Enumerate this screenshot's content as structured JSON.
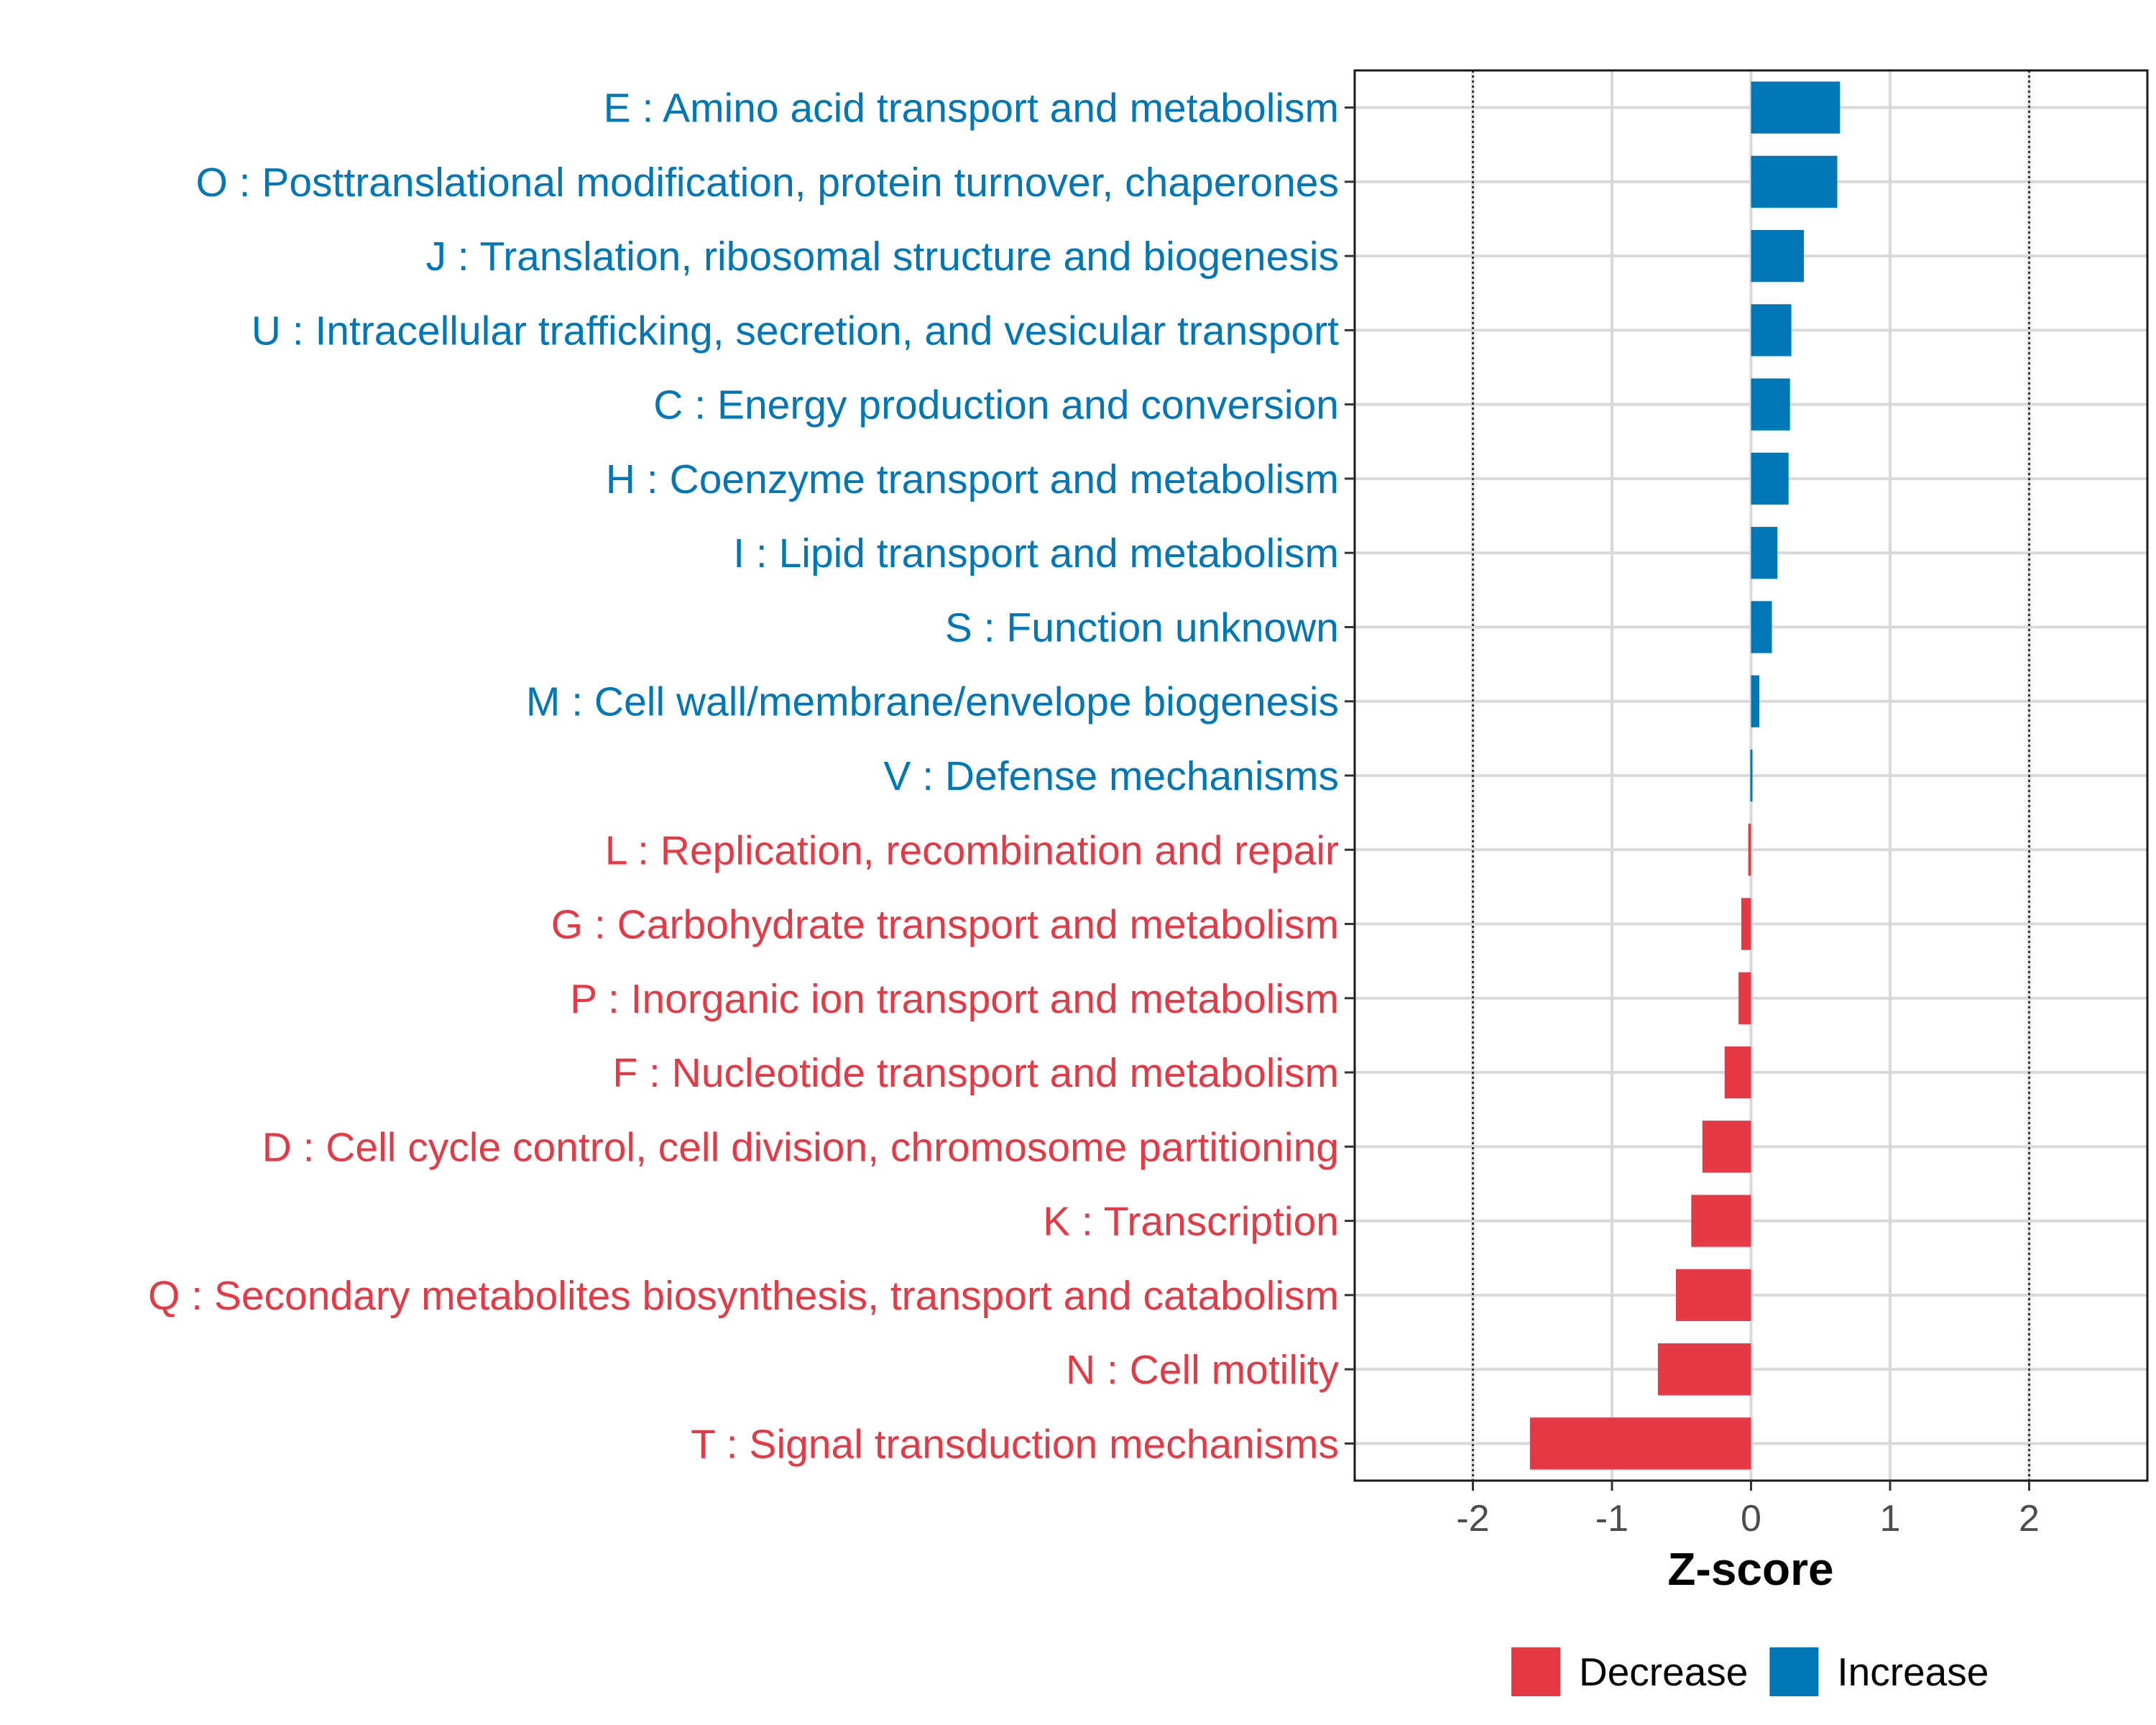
{
  "chart_data": {
    "type": "bar",
    "orientation": "horizontal",
    "xlabel": "Z-score",
    "xlim": [
      -2.85,
      2.85
    ],
    "x_ticks": [
      -2,
      -1,
      0,
      1,
      2
    ],
    "x_tick_labels": [
      "-2",
      "-1",
      "0",
      "1",
      "2"
    ],
    "reference_lines": [
      -2,
      2
    ],
    "grid": true,
    "legend_position": "bottom",
    "colors": {
      "Decrease": "#e63946",
      "Increase": "#0077b6"
    },
    "categories": [
      "E : Amino acid transport and metabolism",
      "O : Posttranslational modification, protein turnover, chaperones",
      "J : Translation, ribosomal structure and biogenesis",
      "U : Intracellular trafficking, secretion, and vesicular transport",
      "C : Energy production and conversion",
      "H : Coenzyme transport and metabolism",
      "I : Lipid transport and metabolism",
      "S : Function unknown",
      "M : Cell wall/membrane/envelope biogenesis",
      "V : Defense mechanisms",
      "L : Replication, recombination and repair",
      "G : Carbohydrate transport and metabolism",
      "P : Inorganic ion transport and metabolism",
      "F : Nucleotide transport and metabolism",
      "D : Cell cycle control, cell division, chromosome partitioning",
      "K : Transcription",
      "Q : Secondary metabolites biosynthesis, transport and catabolism",
      "N : Cell motility",
      "T : Signal transduction mechanisms"
    ],
    "values": [
      0.64,
      0.62,
      0.38,
      0.29,
      0.28,
      0.27,
      0.19,
      0.15,
      0.06,
      0.01,
      -0.02,
      -0.07,
      -0.09,
      -0.19,
      -0.35,
      -0.43,
      -0.54,
      -0.67,
      -1.59
    ],
    "groups": [
      "Increase",
      "Increase",
      "Increase",
      "Increase",
      "Increase",
      "Increase",
      "Increase",
      "Increase",
      "Increase",
      "Increase",
      "Decrease",
      "Decrease",
      "Decrease",
      "Decrease",
      "Decrease",
      "Decrease",
      "Decrease",
      "Decrease",
      "Decrease"
    ],
    "legend": [
      {
        "label": "Decrease",
        "color": "#e63946"
      },
      {
        "label": "Increase",
        "color": "#0077b6"
      }
    ]
  }
}
